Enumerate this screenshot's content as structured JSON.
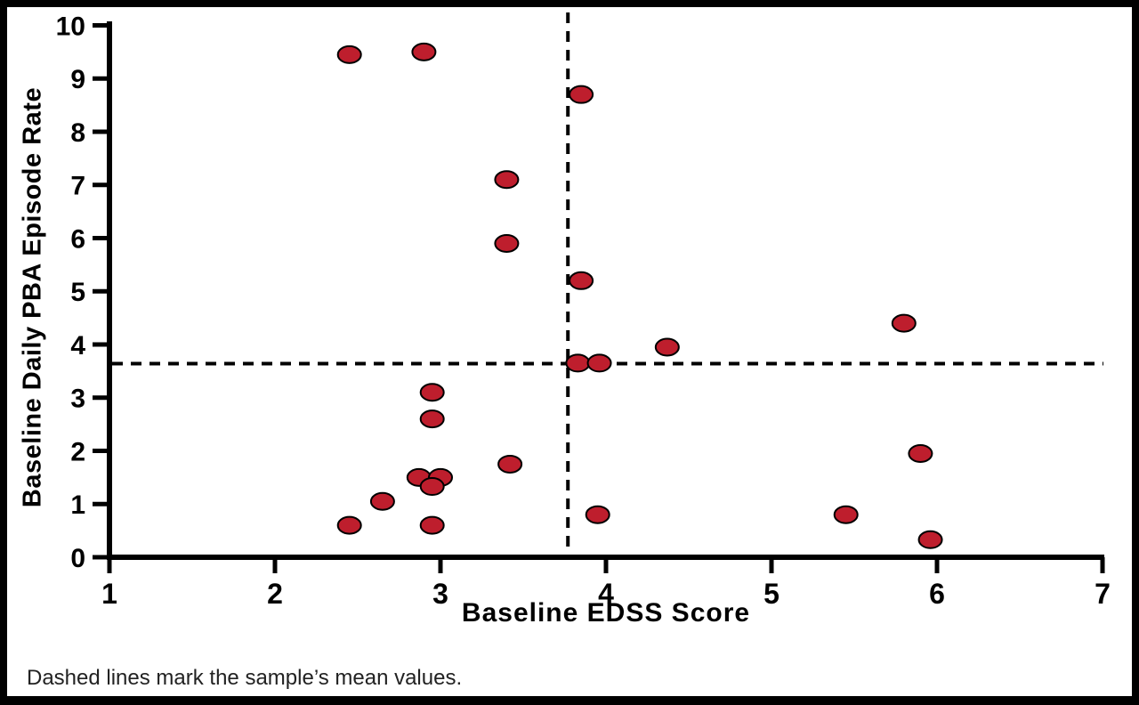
{
  "chart_data": {
    "type": "scatter",
    "title": "",
    "xlabel": "Baseline EDSS Score",
    "ylabel": "Baseline Daily PBA Episode Rate",
    "caption": "Dashed lines mark the sample’s mean values.",
    "xlim": [
      1,
      7
    ],
    "ylim": [
      0,
      10
    ],
    "x_ticks": [
      1,
      2,
      3,
      4,
      5,
      6,
      7
    ],
    "y_ticks": [
      0,
      1,
      2,
      3,
      4,
      5,
      6,
      7,
      8,
      9,
      10
    ],
    "grid": false,
    "legend": null,
    "mean_x": 3.77,
    "mean_y": 3.64,
    "mean_line_style": "dashed",
    "points": [
      [
        2.45,
        9.45
      ],
      [
        2.9,
        9.5
      ],
      [
        3.85,
        8.7
      ],
      [
        3.4,
        7.1
      ],
      [
        3.4,
        5.9
      ],
      [
        3.85,
        5.2
      ],
      [
        5.8,
        4.4
      ],
      [
        4.37,
        3.95
      ],
      [
        3.83,
        3.65
      ],
      [
        3.96,
        3.65
      ],
      [
        2.95,
        3.1
      ],
      [
        2.95,
        2.6
      ],
      [
        5.9,
        1.95
      ],
      [
        3.42,
        1.75
      ],
      [
        2.87,
        1.5
      ],
      [
        3.0,
        1.5
      ],
      [
        2.95,
        1.33
      ],
      [
        2.65,
        1.05
      ],
      [
        3.95,
        0.8
      ],
      [
        5.45,
        0.8
      ],
      [
        2.45,
        0.6
      ],
      [
        2.95,
        0.6
      ],
      [
        5.96,
        0.33
      ]
    ],
    "marker": {
      "shape": "ellipse",
      "fill_color": "#BE1E2D",
      "stroke_color": "#000000"
    },
    "colors": {
      "axis": "#000000",
      "mean_lines": "#000000",
      "background": "#ffffff",
      "frame": "#000000"
    }
  }
}
